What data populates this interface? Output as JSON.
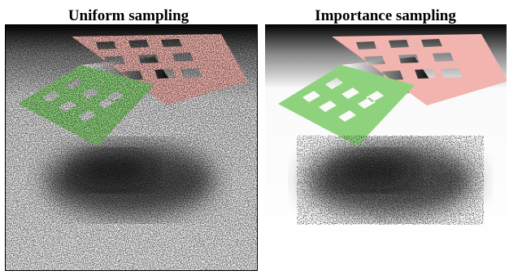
{
  "panels": [
    {
      "title": "Uniform sampling"
    },
    {
      "title": "Importance sampling"
    }
  ]
}
